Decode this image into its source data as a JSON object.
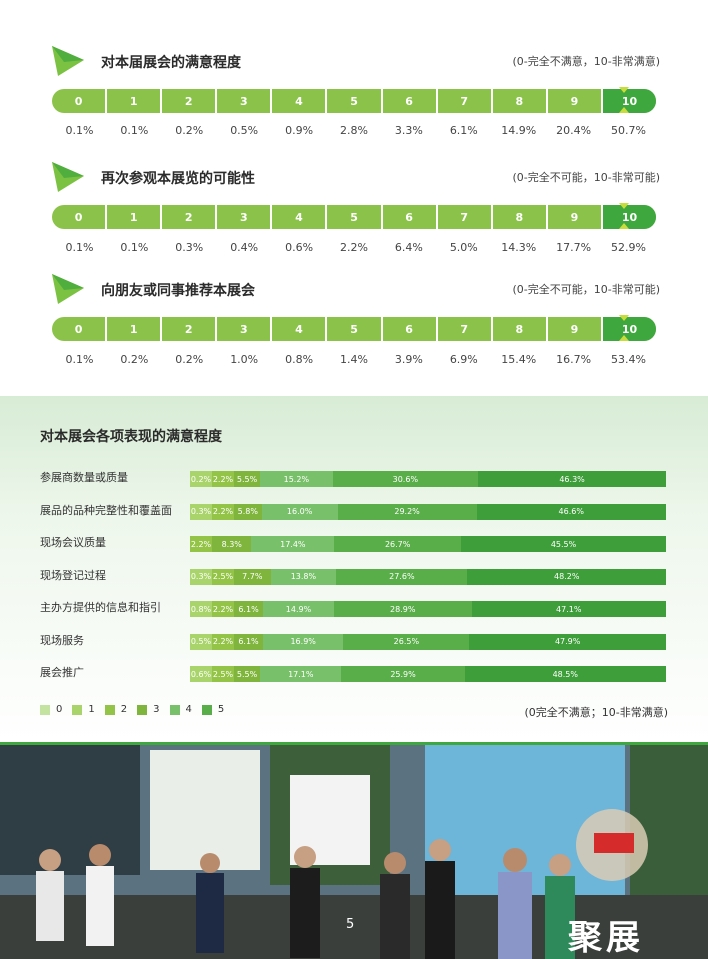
{
  "scale_labels": [
    "0",
    "1",
    "2",
    "3",
    "4",
    "5",
    "6",
    "7",
    "8",
    "9",
    "10"
  ],
  "colors": {
    "scale": "#8bc34a",
    "selected": "#3ea83e",
    "marker": "#c8dc3c"
  },
  "section1": {
    "title": "对本届展会的满意程度",
    "note": "(0-完全不满意，10-非常满意)",
    "pcts": [
      "0.1%",
      "0.1%",
      "0.2%",
      "0.5%",
      "0.9%",
      "2.8%",
      "3.3%",
      "6.1%",
      "14.9%",
      "20.4%",
      "50.7%"
    ]
  },
  "section2": {
    "title": "再次参观本展览的可能性",
    "note": "(0-完全不可能，10-非常可能)",
    "pcts": [
      "0.1%",
      "0.1%",
      "0.3%",
      "0.4%",
      "0.6%",
      "2.2%",
      "6.4%",
      "5.0%",
      "14.3%",
      "17.7%",
      "52.9%"
    ]
  },
  "section3": {
    "title": "向朋友或同事推荐本展会",
    "note": "(0-完全不可能，10-非常可能)",
    "pcts": [
      "0.1%",
      "0.2%",
      "0.2%",
      "1.0%",
      "0.8%",
      "1.4%",
      "3.9%",
      "6.9%",
      "15.4%",
      "16.7%",
      "53.4%"
    ]
  },
  "chart_data": {
    "type": "bar",
    "stacked": true,
    "orientation": "horizontal",
    "title": "对本展会各项表现的满意程度",
    "categories": [
      "参展商数量或质量",
      "展品的品种完整性和覆盖面",
      "现场会议质量",
      "现场登记过程",
      "主办方提供的信息和指引",
      "现场服务",
      "展会推广"
    ],
    "series": [
      {
        "name": "0",
        "color": "#c5e3a0",
        "values": [
          0,
          0,
          0,
          0,
          0,
          0,
          0
        ]
      },
      {
        "name": "1",
        "color": "#a9d46b",
        "values": [
          0.2,
          0.3,
          0,
          0.3,
          0.8,
          0.5,
          0.6
        ]
      },
      {
        "name": "2",
        "color": "#93c448",
        "values": [
          2.2,
          2.2,
          2.2,
          2.5,
          2.2,
          2.2,
          2.5
        ]
      },
      {
        "name": "3",
        "color": "#7fb53d",
        "values": [
          5.5,
          5.8,
          8.3,
          7.7,
          6.1,
          6.1,
          5.5
        ]
      },
      {
        "name": "4",
        "color": "#79c06a",
        "values": [
          15.2,
          16.0,
          17.4,
          13.8,
          14.9,
          16.9,
          17.1
        ]
      },
      {
        "name": "5",
        "color": "#5aae4a",
        "values": [
          30.6,
          29.2,
          26.7,
          27.6,
          28.9,
          26.5,
          25.9
        ]
      },
      {
        "name": "",
        "color": "#3e9e3a",
        "values": [
          46.3,
          46.6,
          45.5,
          48.2,
          47.1,
          47.9,
          48.5
        ]
      }
    ],
    "value_labels": [
      [
        "0.2%",
        "2.2%",
        "5.5%",
        "15.2%",
        "30.6%",
        "46.3%"
      ],
      [
        "0.3%",
        "2.2%",
        "5.8%",
        "16.0%",
        "29.2%",
        "46.6%"
      ],
      [
        "2.2%",
        "8.3%",
        "17.4%",
        "26.7%",
        "45.5%"
      ],
      [
        "0.3%",
        "2.5%",
        "7.7%",
        "13.8%",
        "27.6%",
        "48.2%"
      ],
      [
        "0.8%",
        "2.2%",
        "6.1%",
        "14.9%",
        "28.9%",
        "47.1%"
      ],
      [
        "0.5%",
        "2.2%",
        "6.1%",
        "16.9%",
        "26.5%",
        "47.9%"
      ],
      [
        "0.6%",
        "2.5%",
        "5.5%",
        "17.1%",
        "25.9%",
        "48.5%"
      ]
    ],
    "legend": [
      "0",
      "1",
      "2",
      "3",
      "4",
      "5"
    ],
    "legend_colors": [
      "#c5e3a0",
      "#a9d46b",
      "#93c448",
      "#7fb53d",
      "#79c06a",
      "#5aae4a"
    ],
    "legend_position": "bottom-left",
    "note": "(0完全不满意；10-非常满意)"
  },
  "page_number": "5",
  "watermark": "聚展"
}
